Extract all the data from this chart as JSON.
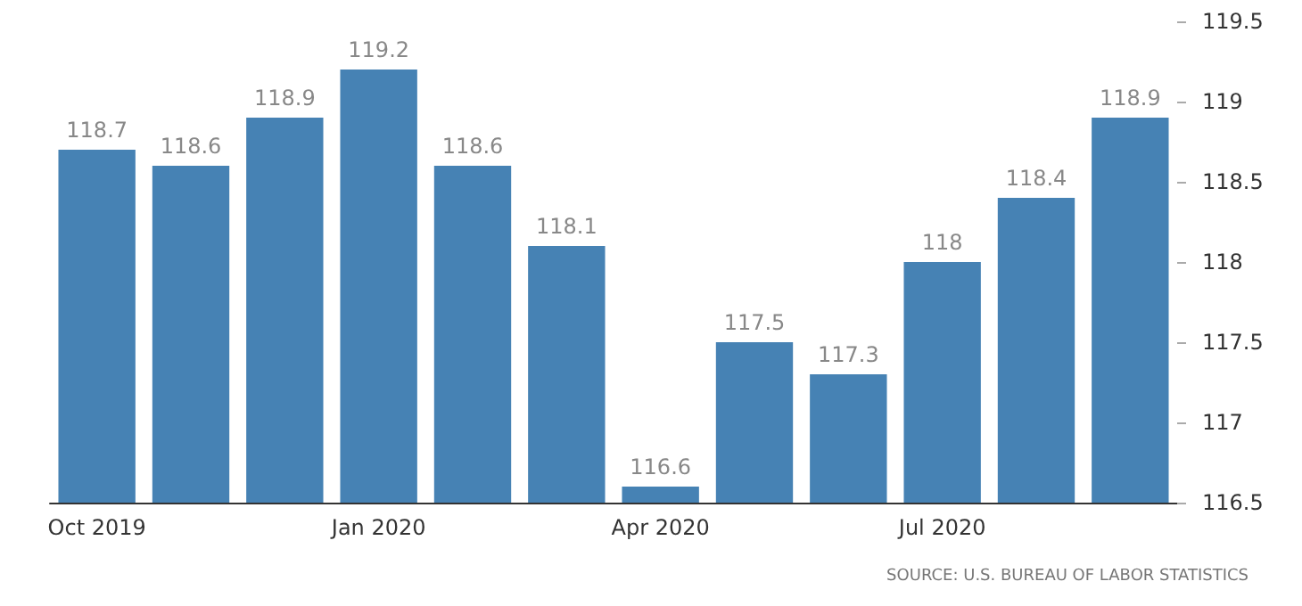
{
  "chart_data": {
    "type": "bar",
    "categories": [
      "Oct 2019",
      null,
      null,
      "Jan 2020",
      null,
      null,
      "Apr 2020",
      null,
      null,
      "Jul 2020",
      null,
      null
    ],
    "values": [
      118.7,
      118.6,
      118.9,
      119.2,
      118.6,
      118.1,
      116.6,
      117.5,
      117.3,
      118,
      118.4,
      118.9
    ],
    "color": "#4682b4",
    "ylim": [
      116.5,
      119.5
    ],
    "yticks": [
      116.5,
      117,
      117.5,
      118,
      118.5,
      119,
      119.5
    ],
    "data_labels": true,
    "grid": false,
    "annotations": [
      "SOURCE: U.S. BUREAU OF LABOR STATISTICS"
    ]
  }
}
